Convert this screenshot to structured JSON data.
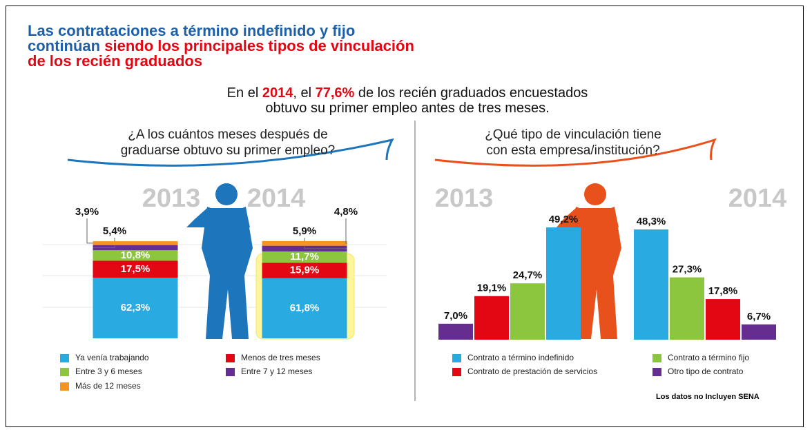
{
  "header": {
    "title": {
      "line1": "Las contrataciones a término indefinido y fijo",
      "line2_blue": "continúan",
      "line2_red": "siendo los principales tipos de vinculación",
      "line3": "de los recién graduados"
    },
    "subtitle": {
      "part1": "En el",
      "year": "2014",
      "part2": ", el",
      "share": "77,6%",
      "part3": "de los recién graduados encuestados",
      "line2": "obtuvo su primer empleo antes de tres meses."
    }
  },
  "chart_data": [
    {
      "type": "stacked-bar",
      "question": [
        "¿A los cuántos meses después de",
        "graduarse obtuvo su primer empleo?"
      ],
      "categories": [
        "2013",
        "2014"
      ],
      "ylim": [
        0,
        100
      ],
      "series": [
        {
          "name": "Ya venía trabajando",
          "color": "#29abe2",
          "values": [
            62.3,
            61.8
          ],
          "value_labels": [
            "62,3%",
            "61,8%"
          ]
        },
        {
          "name": "Menos de tres meses",
          "color": "#e30613",
          "values": [
            17.5,
            15.9
          ],
          "value_labels": [
            "17,5%",
            "15,9%"
          ]
        },
        {
          "name": "Entre 3 y 6 meses",
          "color": "#8cc63f",
          "values": [
            10.8,
            11.7
          ],
          "value_labels": [
            "10,8%",
            "11,7%"
          ]
        },
        {
          "name": "Entre 7 y 12 meses",
          "color": "#662d91",
          "values": [
            5.4,
            5.9
          ],
          "value_labels": [
            "5,4%",
            "5,9%"
          ]
        },
        {
          "name": "Más de 12 meses",
          "color": "#f7941d",
          "values": [
            3.9,
            4.8
          ],
          "value_labels": [
            "3,9%",
            "4,8%"
          ]
        }
      ]
    },
    {
      "type": "grouped-bar",
      "question": [
        "¿Qué tipo de vinculación tiene",
        "con esta empresa/institución?"
      ],
      "categories": [
        "2013",
        "2014"
      ],
      "ylim": [
        0,
        50
      ],
      "series": [
        {
          "name": "Contrato a término indefinido",
          "color": "#29abe2",
          "values": [
            49.2,
            48.3
          ],
          "value_labels": [
            "49,2%",
            "48,3%"
          ]
        },
        {
          "name": "Contrato a término fijo",
          "color": "#8cc63f",
          "values": [
            24.7,
            27.3
          ],
          "value_labels": [
            "24,7%",
            "27,3%"
          ]
        },
        {
          "name": "Contrato de prestación de servicios",
          "color": "#e30613",
          "values": [
            19.1,
            17.8
          ],
          "value_labels": [
            "19,1%",
            "17,8%"
          ]
        },
        {
          "name": "Otro tipo de contrato",
          "color": "#662d91",
          "values": [
            7.0,
            6.7
          ],
          "value_labels": [
            "7,0%",
            "6,7%"
          ]
        }
      ]
    }
  ],
  "note": "Los datos no Incluyen SENA"
}
